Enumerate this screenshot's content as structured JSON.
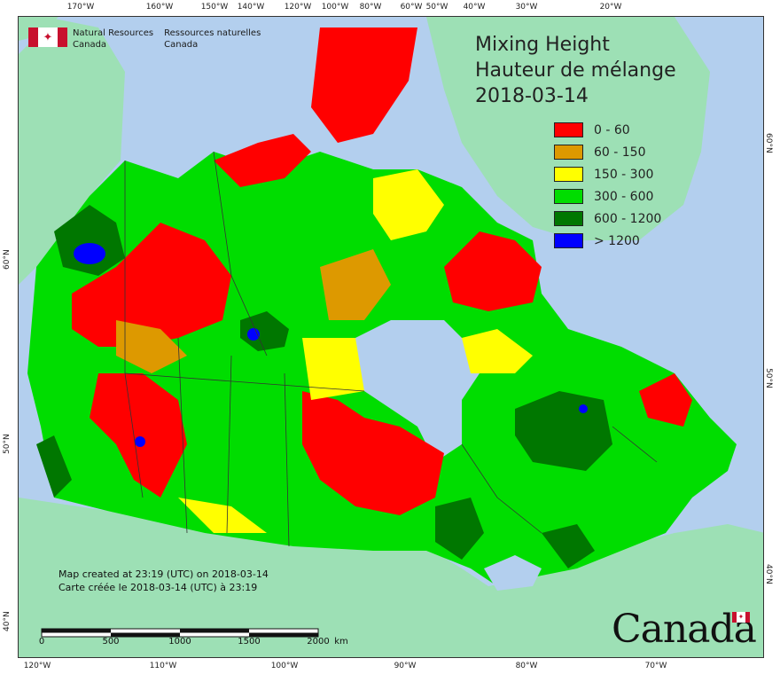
{
  "title": {
    "en": "Mixing Height",
    "fr": "Hauteur de mélange",
    "date": "2018-03-14"
  },
  "agency": {
    "en_line1": "Natural Resources",
    "en_line2": "Canada",
    "fr_line1": "Ressources naturelles",
    "fr_line2": "Canada"
  },
  "legend": [
    {
      "label": "0 - 60",
      "color": "#ff0000"
    },
    {
      "label": "60 - 150",
      "color": "#dd9900"
    },
    {
      "label": "150 - 300",
      "color": "#ffff00"
    },
    {
      "label": "300 - 600",
      "color": "#00dd00"
    },
    {
      "label": "600 - 1200",
      "color": "#007700"
    },
    {
      "label": "> 1200",
      "color": "#0000ff"
    }
  ],
  "credit": {
    "en": "Map created at 23:19 (UTC) on 2018-03-14",
    "fr": "Carte créée le 2018-03-14 (UTC) à 23:19"
  },
  "scale": {
    "ticks": [
      "0",
      "500",
      "1000",
      "1500",
      "2000"
    ],
    "unit": "km"
  },
  "wordmark": "Canada",
  "graticule": {
    "top": [
      "170°W",
      "160°W",
      "150°W",
      "140°W",
      "120°W",
      "100°W",
      "80°W",
      "60°W",
      "50°W",
      "40°W",
      "30°W",
      "20°W"
    ],
    "bottom": [
      "120°W",
      "110°W",
      "100°W",
      "90°W",
      "80°W",
      "70°W"
    ],
    "left": [
      "60°N",
      "50°N",
      "40°N"
    ],
    "right": [
      "60°N",
      "50°N",
      "40°N"
    ]
  },
  "colors": {
    "ocean": "#b3cfee",
    "foreign_land": "#9de0b5",
    "boundary": "#333333"
  }
}
